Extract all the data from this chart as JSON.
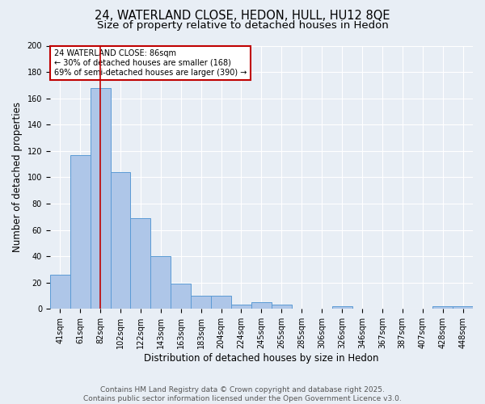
{
  "title_line1": "24, WATERLAND CLOSE, HEDON, HULL, HU12 8QE",
  "title_line2": "Size of property relative to detached houses in Hedon",
  "xlabel": "Distribution of detached houses by size in Hedon",
  "ylabel": "Number of detached properties",
  "bar_labels": [
    "41sqm",
    "61sqm",
    "82sqm",
    "102sqm",
    "122sqm",
    "143sqm",
    "163sqm",
    "183sqm",
    "204sqm",
    "224sqm",
    "245sqm",
    "265sqm",
    "285sqm",
    "306sqm",
    "326sqm",
    "346sqm",
    "367sqm",
    "387sqm",
    "407sqm",
    "428sqm",
    "448sqm"
  ],
  "bar_values": [
    26,
    117,
    168,
    104,
    69,
    40,
    19,
    10,
    10,
    3,
    5,
    3,
    0,
    0,
    2,
    0,
    0,
    0,
    0,
    2,
    2
  ],
  "bar_color": "#aec6e8",
  "bar_edge_color": "#5b9bd5",
  "vline_x": 2,
  "vline_color": "#c00000",
  "annotation_text": "24 WATERLAND CLOSE: 86sqm\n← 30% of detached houses are smaller (168)\n69% of semi-detached houses are larger (390) →",
  "annotation_box_color": "#ffffff",
  "annotation_box_edge_color": "#c00000",
  "annotation_fontsize": 7.0,
  "ylim": [
    0,
    200
  ],
  "yticks": [
    0,
    20,
    40,
    60,
    80,
    100,
    120,
    140,
    160,
    180,
    200
  ],
  "footer_text": "Contains HM Land Registry data © Crown copyright and database right 2025.\nContains public sector information licensed under the Open Government Licence v3.0.",
  "background_color": "#e8eef5",
  "plot_background_color": "#e8eef5",
  "grid_color": "#ffffff",
  "title_fontsize": 10.5,
  "subtitle_fontsize": 9.5,
  "axis_label_fontsize": 8.5,
  "tick_fontsize": 7,
  "footer_fontsize": 6.5
}
